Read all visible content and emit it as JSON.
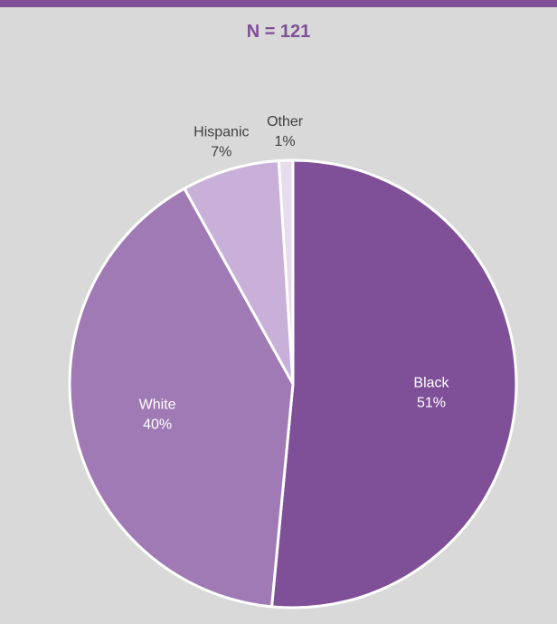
{
  "colors": {
    "header_bar": "#7f4f98",
    "background": "#d9d9d9",
    "title": "#7f4f98"
  },
  "chart_data": {
    "type": "pie",
    "title": "N = 121",
    "slices": [
      {
        "label": "Black",
        "value": 51,
        "value_label": "51%",
        "color": "#7f4f98",
        "label_placement": "inside",
        "label_color": "#ffffff"
      },
      {
        "label": "White",
        "value": 40,
        "value_label": "40%",
        "color": "#a07ab4",
        "label_placement": "inside",
        "label_color": "#ffffff"
      },
      {
        "label": "Hispanic",
        "value": 7,
        "value_label": "7%",
        "color": "#c8b0d8",
        "label_placement": "outside",
        "label_color": "#404040"
      },
      {
        "label": "Other",
        "value": 1,
        "value_label": "1%",
        "color": "#e6dced",
        "label_placement": "outside",
        "label_color": "#404040"
      }
    ]
  }
}
